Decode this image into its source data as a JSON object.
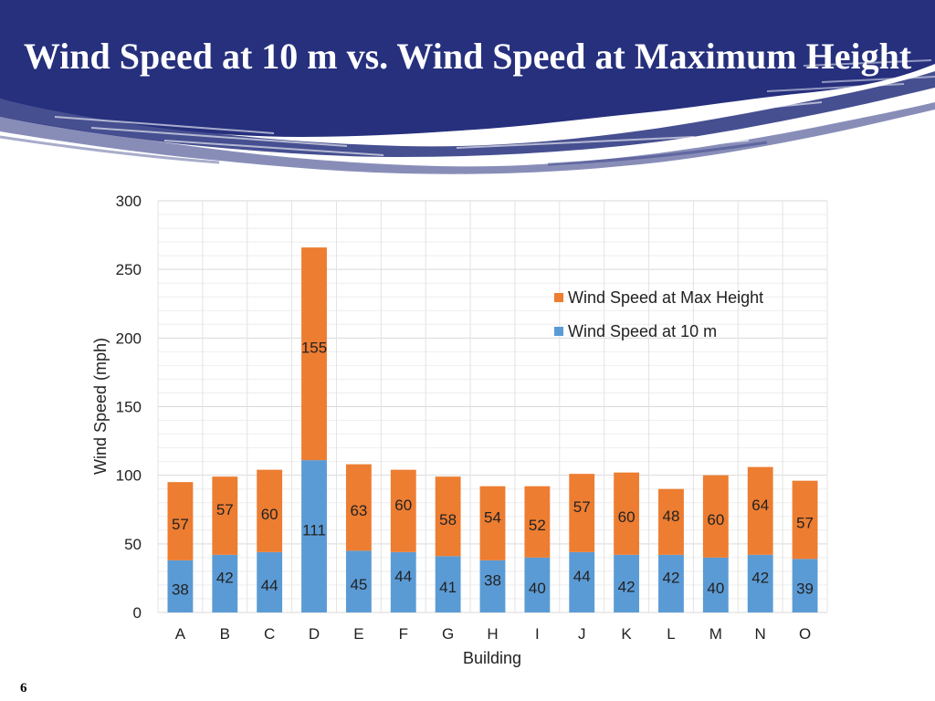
{
  "slide": {
    "title": "Wind Speed at 10 m vs. Wind Speed at Maximum Height",
    "page_number": "6"
  },
  "colors": {
    "banner": "#26307d",
    "max_height_series": "#ed7d31",
    "ten_m_series": "#5b9bd5"
  },
  "chart_data": {
    "type": "bar",
    "stacked": true,
    "categories": [
      "A",
      "B",
      "C",
      "D",
      "E",
      "F",
      "G",
      "H",
      "I",
      "J",
      "K",
      "L",
      "M",
      "N",
      "O"
    ],
    "series": [
      {
        "name": "Wind Speed at 10 m",
        "color": "#5b9bd5",
        "values": [
          38,
          42,
          44,
          111,
          45,
          44,
          41,
          38,
          40,
          44,
          42,
          42,
          40,
          42,
          39
        ]
      },
      {
        "name": "Wind Speed at Max Height",
        "color": "#ed7d31",
        "values": [
          57,
          57,
          60,
          155,
          63,
          60,
          58,
          54,
          52,
          57,
          60,
          48,
          60,
          64,
          57
        ]
      }
    ],
    "xlabel": "Building",
    "ylabel": "Wind Speed (mph)",
    "ylim": [
      0,
      300
    ],
    "yticks": [
      0,
      50,
      100,
      150,
      200,
      250,
      300
    ],
    "grid": true,
    "legend_position": "right",
    "legend_order": [
      "Wind Speed at Max Height",
      "Wind Speed at 10 m"
    ]
  }
}
